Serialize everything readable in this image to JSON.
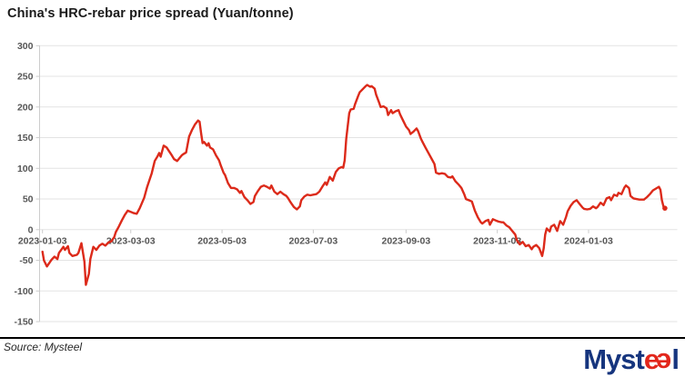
{
  "title": "China's HRC-rebar price spread (Yuan/tonne)",
  "source_caption": "Source: Mysteel",
  "logo": {
    "prefix": "Myst",
    "e1": "e",
    "e2": "e",
    "suffix": "l",
    "navy": "#16357e",
    "red": "#e2261b"
  },
  "colors": {
    "line": "#dc2a1a",
    "grid": "#e3e3e3",
    "axis": "#cccccc",
    "tick_label": "#555555",
    "title": "#1a1a1a",
    "footer_rule": "#000000"
  },
  "chart_data": {
    "type": "line",
    "title": "China's HRC-rebar price spread (Yuan/tonne)",
    "xlabel": "",
    "ylabel": "",
    "ylim": [
      -150,
      300
    ],
    "yticks": [
      300,
      250,
      200,
      150,
      100,
      50,
      0,
      -50,
      -100,
      -150
    ],
    "xticks": [
      "2023-01-03",
      "2023-03-03",
      "2023-05-03",
      "2023-07-03",
      "2023-09-03",
      "2023-11-03",
      "2024-01-03"
    ],
    "grid": "horizontal",
    "legend": "none",
    "xaxis_labels_at_zero_line": true,
    "series": [
      {
        "name": "HRC-rebar price spread",
        "color": "#dc2a1a",
        "points": [
          [
            "2023-01-03",
            -36
          ],
          [
            "2023-01-04",
            -50
          ],
          [
            "2023-01-06",
            -60
          ],
          [
            "2023-01-09",
            -49
          ],
          [
            "2023-01-11",
            -44
          ],
          [
            "2023-01-13",
            -48
          ],
          [
            "2023-01-14",
            -38
          ],
          [
            "2023-01-17",
            -28
          ],
          [
            "2023-01-18",
            -33
          ],
          [
            "2023-01-20",
            -27
          ],
          [
            "2023-01-21",
            -38
          ],
          [
            "2023-01-23",
            -43
          ],
          [
            "2023-01-26",
            -41
          ],
          [
            "2023-01-27",
            -38
          ],
          [
            "2023-01-29",
            -22
          ],
          [
            "2023-01-31",
            -52
          ],
          [
            "2023-02-01",
            -90
          ],
          [
            "2023-02-03",
            -72
          ],
          [
            "2023-02-04",
            -48
          ],
          [
            "2023-02-06",
            -28
          ],
          [
            "2023-02-08",
            -33
          ],
          [
            "2023-02-10",
            -26
          ],
          [
            "2023-02-12",
            -23
          ],
          [
            "2023-02-14",
            -26
          ],
          [
            "2023-02-16",
            -21
          ],
          [
            "2023-02-18",
            -19
          ],
          [
            "2023-02-20",
            -12
          ],
          [
            "2023-02-21",
            -4
          ],
          [
            "2023-02-23",
            5
          ],
          [
            "2023-02-25",
            15
          ],
          [
            "2023-02-27",
            24
          ],
          [
            "2023-03-01",
            31
          ],
          [
            "2023-03-03",
            29
          ],
          [
            "2023-03-05",
            27
          ],
          [
            "2023-03-07",
            26
          ],
          [
            "2023-03-09",
            35
          ],
          [
            "2023-03-12",
            52
          ],
          [
            "2023-03-14",
            70
          ],
          [
            "2023-03-17",
            92
          ],
          [
            "2023-03-19",
            112
          ],
          [
            "2023-03-21",
            120
          ],
          [
            "2023-03-22",
            125
          ],
          [
            "2023-03-23",
            119
          ],
          [
            "2023-03-25",
            137
          ],
          [
            "2023-03-27",
            134
          ],
          [
            "2023-03-30",
            123
          ],
          [
            "2023-04-01",
            115
          ],
          [
            "2023-04-03",
            112
          ],
          [
            "2023-04-06",
            121
          ],
          [
            "2023-04-07",
            123
          ],
          [
            "2023-04-09",
            126
          ],
          [
            "2023-04-11",
            152
          ],
          [
            "2023-04-13",
            163
          ],
          [
            "2023-04-15",
            172
          ],
          [
            "2023-04-17",
            178
          ],
          [
            "2023-04-18",
            176
          ],
          [
            "2023-04-19",
            158
          ],
          [
            "2023-04-20",
            141
          ],
          [
            "2023-04-21",
            143
          ],
          [
            "2023-04-23",
            137
          ],
          [
            "2023-04-24",
            141
          ],
          [
            "2023-04-25",
            134
          ],
          [
            "2023-04-27",
            131
          ],
          [
            "2023-04-29",
            121
          ],
          [
            "2023-05-01",
            113
          ],
          [
            "2023-05-02",
            106
          ],
          [
            "2023-05-04",
            93
          ],
          [
            "2023-05-05",
            89
          ],
          [
            "2023-05-07",
            76
          ],
          [
            "2023-05-09",
            68
          ],
          [
            "2023-05-11",
            68
          ],
          [
            "2023-05-13",
            66
          ],
          [
            "2023-05-15",
            60
          ],
          [
            "2023-05-16",
            63
          ],
          [
            "2023-05-18",
            53
          ],
          [
            "2023-05-20",
            48
          ],
          [
            "2023-05-22",
            42
          ],
          [
            "2023-05-24",
            45
          ],
          [
            "2023-05-25",
            55
          ],
          [
            "2023-05-27",
            63
          ],
          [
            "2023-05-29",
            70
          ],
          [
            "2023-05-31",
            72
          ],
          [
            "2023-06-02",
            70
          ],
          [
            "2023-06-04",
            67
          ],
          [
            "2023-06-05",
            72
          ],
          [
            "2023-06-07",
            62
          ],
          [
            "2023-06-09",
            58
          ],
          [
            "2023-06-11",
            62
          ],
          [
            "2023-06-13",
            58
          ],
          [
            "2023-06-15",
            55
          ],
          [
            "2023-06-16",
            52
          ],
          [
            "2023-06-18",
            44
          ],
          [
            "2023-06-20",
            37
          ],
          [
            "2023-06-22",
            33
          ],
          [
            "2023-06-24",
            38
          ],
          [
            "2023-06-25",
            48
          ],
          [
            "2023-06-27",
            54
          ],
          [
            "2023-06-29",
            57
          ],
          [
            "2023-07-01",
            56
          ],
          [
            "2023-07-03",
            57
          ],
          [
            "2023-07-05",
            58
          ],
          [
            "2023-07-07",
            62
          ],
          [
            "2023-07-09",
            70
          ],
          [
            "2023-07-11",
            77
          ],
          [
            "2023-07-12",
            73
          ],
          [
            "2023-07-14",
            86
          ],
          [
            "2023-07-16",
            80
          ],
          [
            "2023-07-18",
            94
          ],
          [
            "2023-07-20",
            100
          ],
          [
            "2023-07-22",
            102
          ],
          [
            "2023-07-23",
            101
          ],
          [
            "2023-07-24",
            113
          ],
          [
            "2023-07-25",
            148
          ],
          [
            "2023-07-27",
            190
          ],
          [
            "2023-07-28",
            196
          ],
          [
            "2023-07-30",
            197
          ],
          [
            "2023-07-31",
            205
          ],
          [
            "2023-08-02",
            218
          ],
          [
            "2023-08-03",
            224
          ],
          [
            "2023-08-05",
            229
          ],
          [
            "2023-08-07",
            234
          ],
          [
            "2023-08-08",
            236
          ],
          [
            "2023-08-10",
            233
          ],
          [
            "2023-08-11",
            234
          ],
          [
            "2023-08-13",
            230
          ],
          [
            "2023-08-14",
            220
          ],
          [
            "2023-08-16",
            207
          ],
          [
            "2023-08-17",
            200
          ],
          [
            "2023-08-19",
            201
          ],
          [
            "2023-08-21",
            198
          ],
          [
            "2023-08-22",
            187
          ],
          [
            "2023-08-24",
            195
          ],
          [
            "2023-08-25",
            190
          ],
          [
            "2023-08-27",
            193
          ],
          [
            "2023-08-29",
            195
          ],
          [
            "2023-08-30",
            188
          ],
          [
            "2023-09-01",
            178
          ],
          [
            "2023-09-03",
            168
          ],
          [
            "2023-09-05",
            162
          ],
          [
            "2023-09-06",
            156
          ],
          [
            "2023-09-08",
            160
          ],
          [
            "2023-09-10",
            165
          ],
          [
            "2023-09-11",
            161
          ],
          [
            "2023-09-13",
            148
          ],
          [
            "2023-09-14",
            143
          ],
          [
            "2023-09-16",
            134
          ],
          [
            "2023-09-18",
            125
          ],
          [
            "2023-09-20",
            116
          ],
          [
            "2023-09-22",
            107
          ],
          [
            "2023-09-23",
            93
          ],
          [
            "2023-09-25",
            91
          ],
          [
            "2023-09-27",
            92
          ],
          [
            "2023-09-29",
            91
          ],
          [
            "2023-10-01",
            86
          ],
          [
            "2023-10-03",
            85
          ],
          [
            "2023-10-04",
            87
          ],
          [
            "2023-10-06",
            79
          ],
          [
            "2023-10-08",
            74
          ],
          [
            "2023-10-10",
            68
          ],
          [
            "2023-10-12",
            57
          ],
          [
            "2023-10-13",
            50
          ],
          [
            "2023-10-15",
            48
          ],
          [
            "2023-10-17",
            46
          ],
          [
            "2023-10-19",
            31
          ],
          [
            "2023-10-21",
            20
          ],
          [
            "2023-10-23",
            12
          ],
          [
            "2023-10-24",
            10
          ],
          [
            "2023-10-26",
            14
          ],
          [
            "2023-10-28",
            16
          ],
          [
            "2023-10-29",
            8
          ],
          [
            "2023-10-31",
            17
          ],
          [
            "2023-11-02",
            15
          ],
          [
            "2023-11-04",
            13
          ],
          [
            "2023-11-06",
            12
          ],
          [
            "2023-11-07",
            12
          ],
          [
            "2023-11-09",
            7
          ],
          [
            "2023-11-11",
            4
          ],
          [
            "2023-11-13",
            -2
          ],
          [
            "2023-11-15",
            -8
          ],
          [
            "2023-11-16",
            -17
          ],
          [
            "2023-11-18",
            -24
          ],
          [
            "2023-11-20",
            -20
          ],
          [
            "2023-11-22",
            -27
          ],
          [
            "2023-11-24",
            -25
          ],
          [
            "2023-11-26",
            -32
          ],
          [
            "2023-11-27",
            -28
          ],
          [
            "2023-11-29",
            -25
          ],
          [
            "2023-12-01",
            -30
          ],
          [
            "2023-12-03",
            -43
          ],
          [
            "2023-12-04",
            -30
          ],
          [
            "2023-12-05",
            -8
          ],
          [
            "2023-12-06",
            2
          ],
          [
            "2023-12-08",
            -3
          ],
          [
            "2023-12-09",
            5
          ],
          [
            "2023-12-11",
            8
          ],
          [
            "2023-12-13",
            -2
          ],
          [
            "2023-12-14",
            6
          ],
          [
            "2023-12-15",
            14
          ],
          [
            "2023-12-17",
            8
          ],
          [
            "2023-12-19",
            21
          ],
          [
            "2023-12-20",
            30
          ],
          [
            "2023-12-22",
            39
          ],
          [
            "2023-12-24",
            45
          ],
          [
            "2023-12-26",
            48
          ],
          [
            "2023-12-28",
            42
          ],
          [
            "2023-12-30",
            36
          ],
          [
            "2023-12-31",
            34
          ],
          [
            "2024-01-02",
            33
          ],
          [
            "2024-01-04",
            34
          ],
          [
            "2024-01-06",
            38
          ],
          [
            "2024-01-08",
            35
          ],
          [
            "2024-01-09",
            37
          ],
          [
            "2024-01-11",
            44
          ],
          [
            "2024-01-13",
            40
          ],
          [
            "2024-01-15",
            51
          ],
          [
            "2024-01-17",
            53
          ],
          [
            "2024-01-18",
            48
          ],
          [
            "2024-01-20",
            57
          ],
          [
            "2024-01-22",
            55
          ],
          [
            "2024-01-23",
            60
          ],
          [
            "2024-01-25",
            58
          ],
          [
            "2024-01-27",
            69
          ],
          [
            "2024-01-28",
            72
          ],
          [
            "2024-01-30",
            68
          ],
          [
            "2024-01-31",
            55
          ],
          [
            "2024-02-02",
            51
          ],
          [
            "2024-02-04",
            50
          ],
          [
            "2024-02-06",
            49
          ],
          [
            "2024-02-09",
            49
          ],
          [
            "2024-02-11",
            53
          ],
          [
            "2024-02-13",
            58
          ],
          [
            "2024-02-15",
            64
          ],
          [
            "2024-02-17",
            67
          ],
          [
            "2024-02-19",
            70
          ],
          [
            "2024-02-20",
            65
          ],
          [
            "2024-02-21",
            48
          ],
          [
            "2024-02-22",
            38
          ],
          [
            "2024-02-23",
            35
          ]
        ]
      }
    ]
  }
}
